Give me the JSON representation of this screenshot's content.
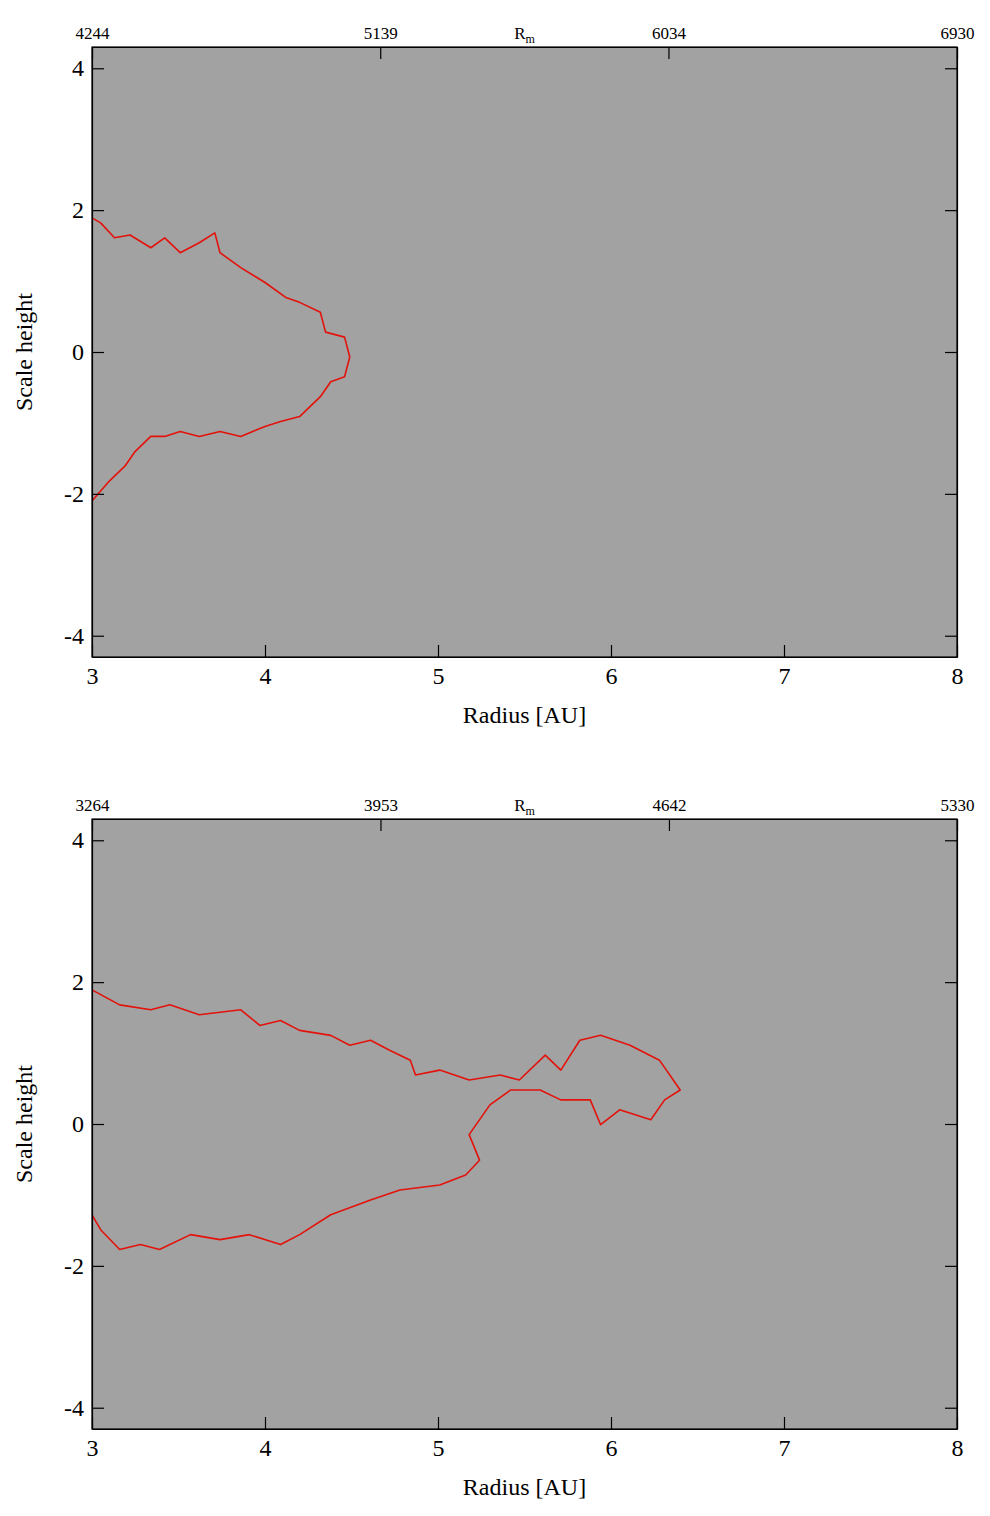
{
  "chart_data": [
    {
      "type": "line",
      "xlabel": "Radius [AU]",
      "ylabel": "Scale height",
      "x2label": "Rm",
      "xlim": [
        3,
        8
      ],
      "xticks": [
        3,
        4,
        5,
        6,
        7,
        8
      ],
      "ylim": [
        -4.3,
        4.3
      ],
      "yticks": [
        -4,
        -2,
        0,
        2,
        4
      ],
      "x2lim": [
        4244,
        6930
      ],
      "x2ticks": [
        4244,
        5139,
        6034,
        6930
      ],
      "series": [
        {
          "color": "#e3120b",
          "x": [
            3.0,
            3.05,
            3.13,
            3.22,
            3.34,
            3.42,
            3.51,
            3.62,
            3.71,
            3.74,
            3.86,
            4.0,
            4.12,
            4.2,
            4.32,
            4.35,
            4.46,
            4.49,
            4.46,
            4.38,
            4.32,
            4.26,
            4.2,
            4.09,
            4.0,
            3.86,
            3.74,
            3.62,
            3.51,
            3.42,
            3.34,
            3.25,
            3.19,
            3.1,
            3.0
          ],
          "values": [
            1.89,
            1.82,
            1.61,
            1.65,
            1.47,
            1.61,
            1.4,
            1.54,
            1.68,
            1.4,
            1.19,
            0.98,
            0.77,
            0.7,
            0.56,
            0.28,
            0.21,
            -0.07,
            -0.35,
            -0.42,
            -0.63,
            -0.77,
            -0.91,
            -0.98,
            -1.05,
            -1.19,
            -1.12,
            -1.19,
            -1.12,
            -1.19,
            -1.19,
            -1.4,
            -1.61,
            -1.82,
            -2.1
          ]
        }
      ]
    },
    {
      "type": "line",
      "xlabel": "Radius [AU]",
      "ylabel": "Scale height",
      "x2label": "Rm",
      "xlim": [
        3,
        8
      ],
      "xticks": [
        3,
        4,
        5,
        6,
        7,
        8
      ],
      "ylim": [
        -4.3,
        4.3
      ],
      "yticks": [
        -4,
        -2,
        0,
        2,
        4
      ],
      "x2lim": [
        3264,
        5330
      ],
      "x2ticks": [
        3264,
        3953,
        4642,
        5330
      ],
      "series": [
        {
          "color": "#e3120b",
          "x": [
            3.0,
            3.16,
            3.34,
            3.45,
            3.62,
            3.86,
            3.97,
            4.09,
            4.2,
            4.38,
            4.49,
            4.61,
            4.72,
            4.84,
            4.87,
            5.01,
            5.18,
            5.36,
            5.47,
            5.62,
            5.71,
            5.82,
            5.94,
            6.11,
            6.28,
            6.4,
            6.31,
            6.23,
            6.05,
            5.94,
            5.88,
            5.71,
            5.59,
            5.42,
            5.3,
            5.18,
            5.24,
            5.16,
            5.01,
            4.78,
            4.61,
            4.38,
            4.2,
            4.09,
            3.91,
            3.74,
            3.57,
            3.39,
            3.28,
            3.16,
            3.05,
            3.0
          ],
          "values": [
            1.89,
            1.68,
            1.61,
            1.68,
            1.54,
            1.61,
            1.39,
            1.46,
            1.32,
            1.25,
            1.11,
            1.18,
            1.04,
            0.9,
            0.69,
            0.76,
            0.62,
            0.69,
            0.62,
            0.97,
            0.76,
            1.18,
            1.25,
            1.11,
            0.9,
            0.48,
            0.34,
            0.06,
            0.2,
            -0.01,
            0.34,
            0.34,
            0.48,
            0.48,
            0.27,
            -0.15,
            -0.51,
            -0.72,
            -0.86,
            -0.93,
            -1.07,
            -1.28,
            -1.56,
            -1.7,
            -1.56,
            -1.63,
            -1.56,
            -1.77,
            -1.7,
            -1.77,
            -1.49,
            -1.28
          ]
        }
      ]
    }
  ]
}
